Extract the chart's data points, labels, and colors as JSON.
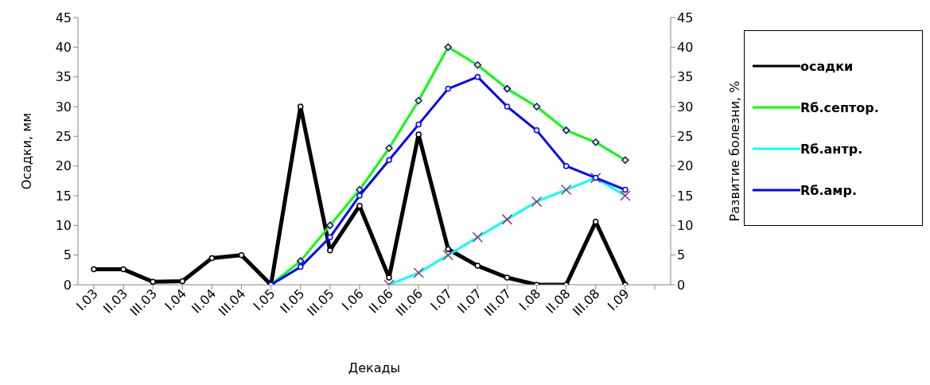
{
  "chart_data": {
    "type": "line",
    "xlabel": "Декады",
    "ylabel": "Осадки, мм",
    "y2label": "Развитие болезни, %",
    "categories": [
      "I.03",
      "II.03",
      "III.03",
      "I.04",
      "II.04",
      "III.04",
      "I.05",
      "II.05",
      "III.05",
      "I.06",
      "II.06",
      "III.06",
      "I.07",
      "II.07",
      "III.07",
      "I.08",
      "II.08",
      "III.08",
      "I.09",
      null
    ],
    "series": [
      {
        "name": "осадки",
        "color": "#000000",
        "marker": "circle",
        "values": [
          2.6,
          2.6,
          0.5,
          0.6,
          4.5,
          5.0,
          0,
          30,
          5.8,
          13.3,
          1.2,
          25.3,
          6,
          3.2,
          1.2,
          0,
          0,
          10.6,
          0,
          null
        ]
      },
      {
        "name": "Rб.септор.",
        "color": "#00ff00",
        "marker": "diamond",
        "axis": "y2",
        "values": [
          null,
          null,
          null,
          null,
          null,
          null,
          0,
          4,
          10,
          16,
          23,
          31,
          40,
          37,
          33,
          30,
          26,
          24,
          21,
          null
        ]
      },
      {
        "name": "Rб.антр.",
        "color": "#00ffff",
        "marker": "cross",
        "axis": "y2",
        "values": [
          null,
          null,
          null,
          null,
          null,
          null,
          null,
          null,
          null,
          null,
          0,
          2,
          5,
          8,
          11,
          14,
          16,
          18,
          15,
          null
        ]
      },
      {
        "name": "Rб.амр.",
        "color": "#0000ff",
        "marker": "circle",
        "axis": "y2",
        "values": [
          null,
          null,
          null,
          null,
          null,
          null,
          0,
          3,
          8,
          15,
          21,
          27,
          33,
          35,
          30,
          26,
          20,
          18,
          16,
          null
        ]
      }
    ],
    "ylim": [
      0,
      45
    ],
    "yticks": [
      0,
      5,
      10,
      15,
      20,
      25,
      30,
      35,
      40,
      45
    ],
    "y2lim": [
      0,
      45
    ],
    "y2ticks": [
      0,
      5,
      10,
      15,
      20,
      25,
      30,
      35,
      40,
      45
    ],
    "grid": false,
    "legend": "right"
  }
}
